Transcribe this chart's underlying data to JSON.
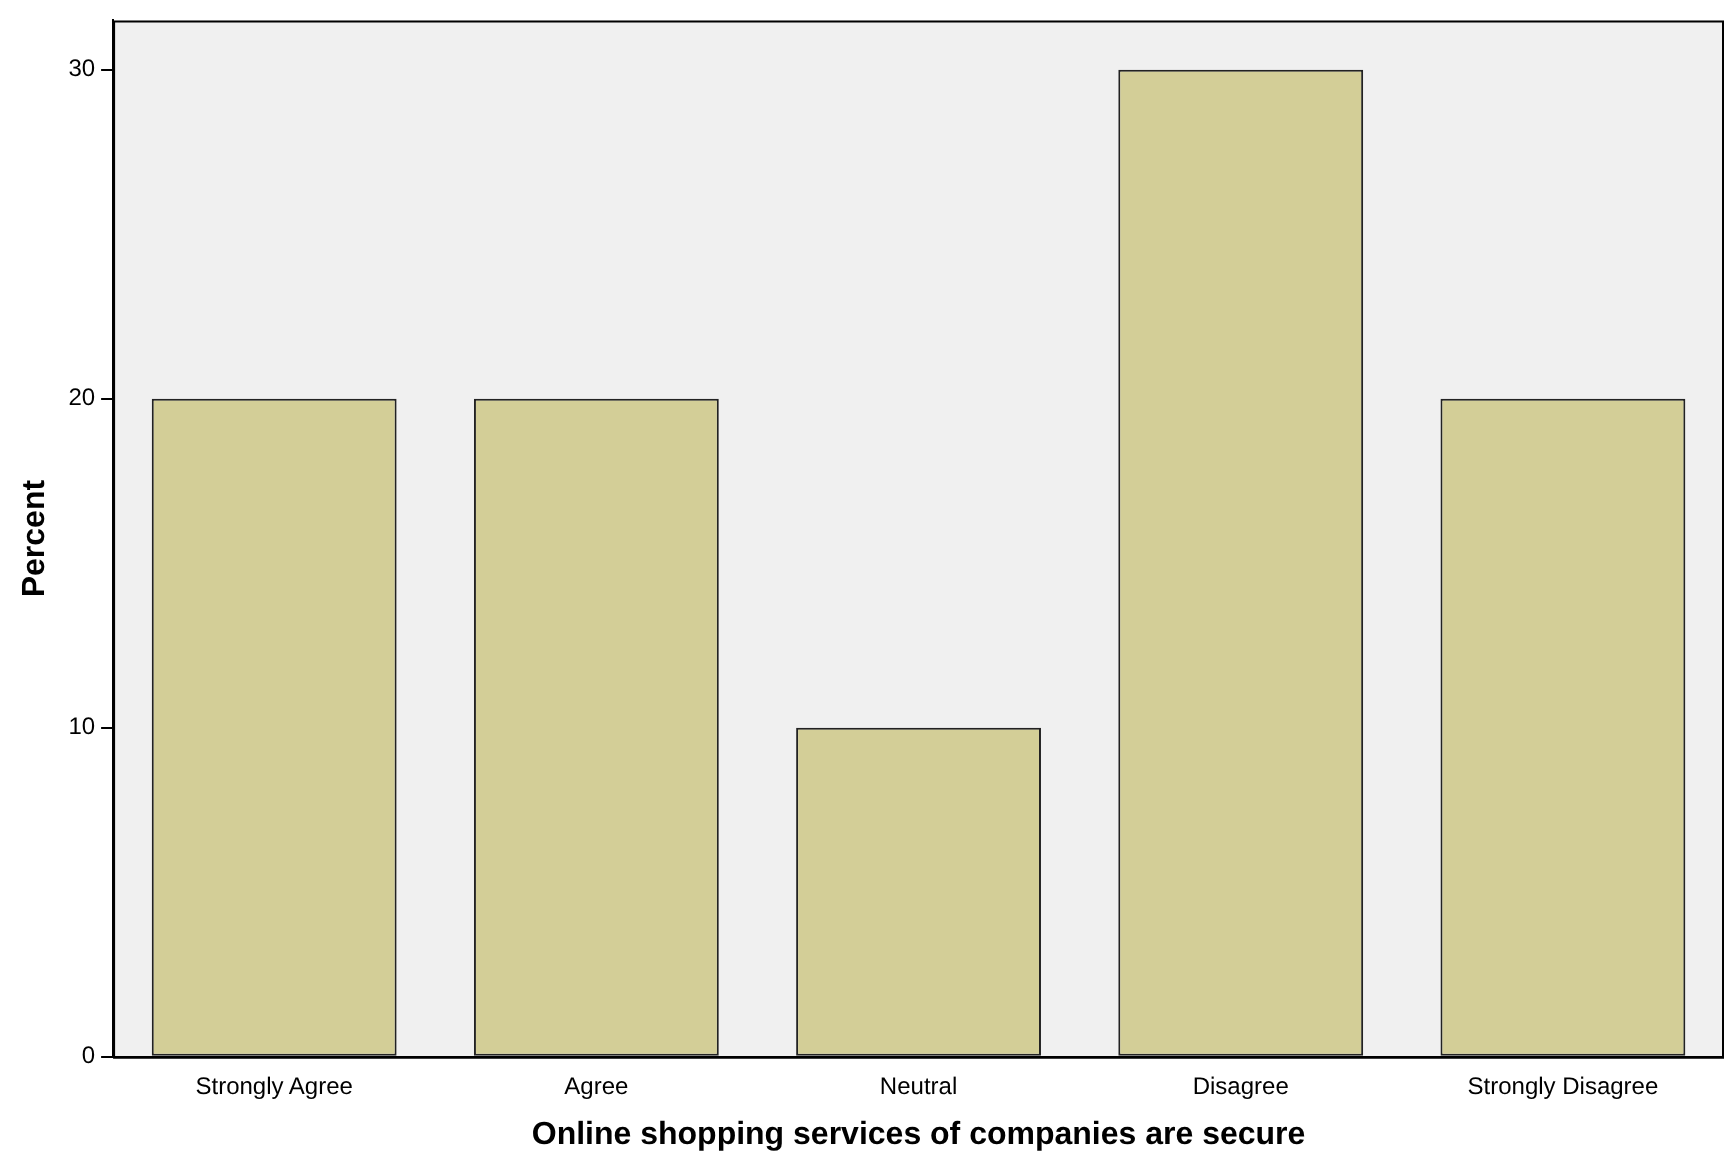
{
  "chart_data": {
    "type": "bar",
    "xlabel": "Online shopping services of companies are secure",
    "ylabel": "Percent",
    "categories": [
      "Strongly Agree",
      "Agree",
      "Neutral",
      "Disagree",
      "Strongly Disagree"
    ],
    "values": [
      20,
      20,
      10,
      30,
      20
    ],
    "color": "#d3ce97",
    "ylim": [
      0,
      31.5
    ],
    "yticks": [
      0,
      10,
      20,
      30
    ],
    "grid": false,
    "legend": false
  }
}
